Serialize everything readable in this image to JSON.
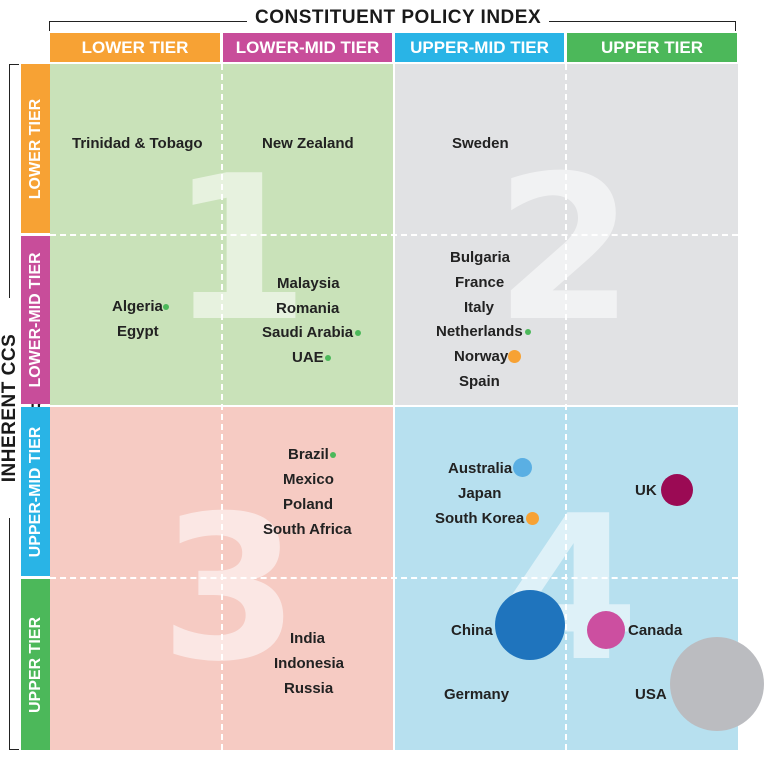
{
  "top_axis_title": "CONSTITUENT POLICY INDEX",
  "left_axis_title": "INHERENT CCS INTEREST",
  "columns": [
    {
      "label": "LOWER TIER",
      "color": "#f7a234"
    },
    {
      "label": "LOWER-MID TIER",
      "color": "#c84d9a"
    },
    {
      "label": "UPPER-MID TIER",
      "color": "#29b4e6"
    },
    {
      "label": "UPPER TIER",
      "color": "#4cb85a"
    }
  ],
  "rows": [
    {
      "label": "LOWER TIER",
      "color": "#f7a234"
    },
    {
      "label": "LOWER-MID TIER",
      "color": "#c84d9a"
    },
    {
      "label": "UPPER-MID TIER",
      "color": "#29b4e6"
    },
    {
      "label": "UPPER TIER",
      "color": "#4cb85a"
    }
  ],
  "quadrants": [
    {
      "number": "1",
      "color": "#c9e2b9"
    },
    {
      "number": "2",
      "color": "#e1e2e4"
    },
    {
      "number": "3",
      "color": "#f6cbc3"
    },
    {
      "number": "4",
      "color": "#b7e0ef"
    }
  ],
  "countries": [
    {
      "name": "Trinidad & Tobago"
    },
    {
      "name": "New Zealand"
    },
    {
      "name": "Sweden"
    },
    {
      "name": "Algeria",
      "dot_color": "#4cb85a"
    },
    {
      "name": "Egypt"
    },
    {
      "name": "Malaysia"
    },
    {
      "name": "Romania"
    },
    {
      "name": "Saudi Arabia",
      "dot_color": "#4cb85a"
    },
    {
      "name": "UAE",
      "dot_color": "#4cb85a"
    },
    {
      "name": "Bulgaria"
    },
    {
      "name": "France"
    },
    {
      "name": "Italy"
    },
    {
      "name": "Netherlands",
      "dot_color": "#4cb85a"
    },
    {
      "name": "Norway",
      "dot_color": "#f7a234"
    },
    {
      "name": "Spain"
    },
    {
      "name": "Brazil",
      "dot_color": "#4cb85a"
    },
    {
      "name": "Mexico"
    },
    {
      "name": "Poland"
    },
    {
      "name": "South Africa"
    },
    {
      "name": "Australia",
      "dot_color": "#5aafe3"
    },
    {
      "name": "Japan"
    },
    {
      "name": "South Korea",
      "dot_color": "#f7a234"
    },
    {
      "name": "UK",
      "dot_color": "#9b0a54"
    },
    {
      "name": "India"
    },
    {
      "name": "Indonesia"
    },
    {
      "name": "Russia"
    },
    {
      "name": "China",
      "dot_color": "#1f74bd"
    },
    {
      "name": "Canada",
      "dot_color": "#cc4fa0"
    },
    {
      "name": "Germany"
    },
    {
      "name": "USA",
      "dot_color": "#bbbcc0"
    }
  ]
}
